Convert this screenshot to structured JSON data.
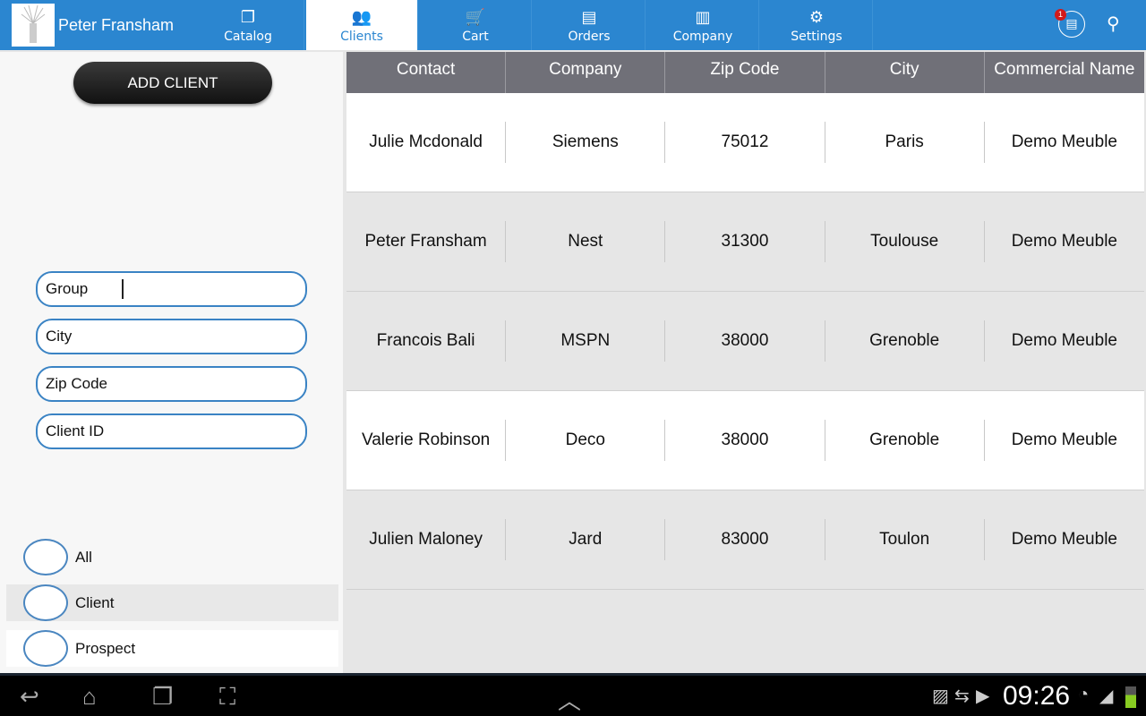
{
  "header": {
    "user_name": "Peter Fransham",
    "notification_count": "1",
    "tabs": [
      {
        "label": "Catalog",
        "icon": "catalog-icon"
      },
      {
        "label": "Clients",
        "icon": "clients-icon",
        "active": true
      },
      {
        "label": "Cart",
        "icon": "cart-icon"
      },
      {
        "label": "Orders",
        "icon": "orders-icon"
      },
      {
        "label": "Company",
        "icon": "company-icon"
      },
      {
        "label": "Settings",
        "icon": "gear-icon"
      }
    ]
  },
  "sidebar": {
    "add_client": "ADD CLIENT",
    "fields": [
      {
        "placeholder": "Group"
      },
      {
        "placeholder": "City"
      },
      {
        "placeholder": "Zip Code"
      },
      {
        "placeholder": "Client ID"
      }
    ],
    "filters": [
      {
        "label": "All"
      },
      {
        "label": "Client"
      },
      {
        "label": "Prospect"
      }
    ]
  },
  "table": {
    "columns": [
      "Contact",
      "Company",
      "Zip Code",
      "City",
      "Commercial Name"
    ],
    "rows": [
      [
        "Julie Mcdonald",
        "Siemens",
        "75012",
        "Paris",
        "Demo Meuble"
      ],
      [
        "Peter Fransham",
        "Nest",
        "31300",
        "Toulouse",
        "Demo Meuble"
      ],
      [
        "Francois Bali",
        "MSPN",
        "38000",
        "Grenoble",
        "Demo Meuble"
      ],
      [
        "Valerie Robinson",
        "Deco",
        "38000",
        "Grenoble",
        "Demo Meuble"
      ],
      [
        "Julien Maloney",
        "Jard",
        "83000",
        "Toulon",
        "Demo Meuble"
      ]
    ]
  },
  "status_bar": {
    "time": "09:26"
  },
  "colors": {
    "accent": "#2b86d0",
    "header_gray": "#707078"
  }
}
